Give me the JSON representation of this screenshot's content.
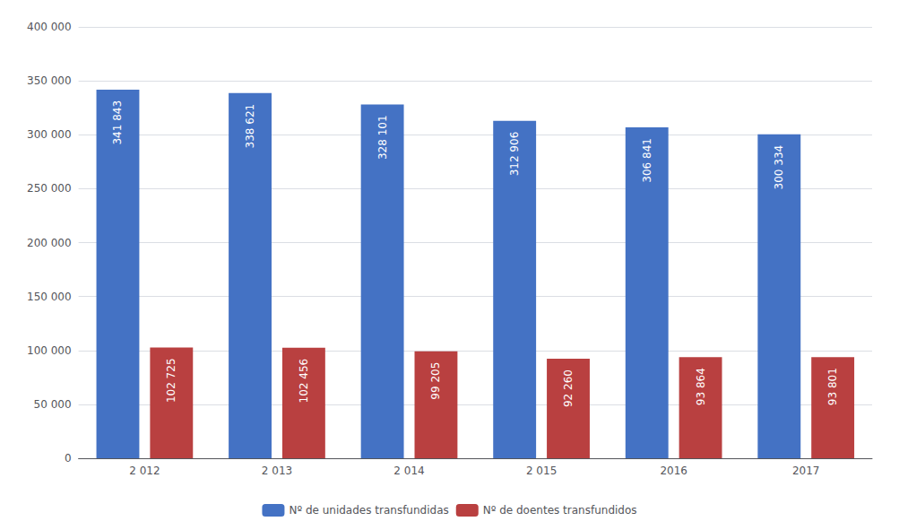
{
  "chart_data": {
    "type": "bar",
    "categories": [
      "2 012",
      "2 013",
      "2 014",
      "2 015",
      "2016",
      "2017"
    ],
    "series": [
      {
        "name": "Nº de unidades transfundidas",
        "color": "#4472C4",
        "values": [
          341843,
          338621,
          328101,
          312906,
          306841,
          300334
        ],
        "value_labels": [
          "341 843",
          "338 621",
          "328 101",
          "312 906",
          "306 841",
          "300 334"
        ]
      },
      {
        "name": "Nº de doentes transfundidos",
        "color": "#B94040",
        "values": [
          102725,
          102456,
          99205,
          92260,
          93864,
          93801
        ],
        "value_labels": [
          "102 725",
          "102 456",
          "99 205",
          "92 260",
          "93 864",
          "93 801"
        ]
      }
    ],
    "ylim": [
      0,
      400000
    ],
    "yticks": [
      0,
      {
        "value": 50000,
        "label": "50 000"
      },
      {
        "value": 100000,
        "label": "100 000"
      },
      {
        "value": 150000,
        "label": "150 000"
      },
      {
        "value": 200000,
        "label": "200 000"
      },
      {
        "value": 250000,
        "label": "250 000"
      },
      {
        "value": 300000,
        "label": "300 000"
      },
      {
        "value": 350000,
        "label": "350 000"
      },
      {
        "value": 400000,
        "label": "400 000"
      }
    ],
    "grid": true,
    "data_labels": true,
    "legend": "bottom"
  }
}
